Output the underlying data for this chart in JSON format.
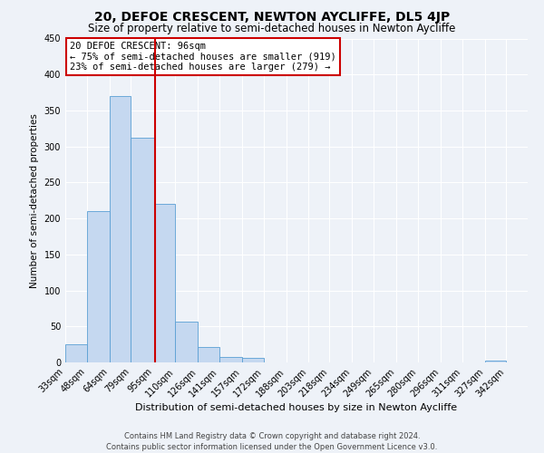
{
  "title": "20, DEFOE CRESCENT, NEWTON AYCLIFFE, DL5 4JP",
  "subtitle": "Size of property relative to semi-detached houses in Newton Aycliffe",
  "xlabel": "Distribution of semi-detached houses by size in Newton Aycliffe",
  "ylabel": "Number of semi-detached properties",
  "bin_labels": [
    "33sqm",
    "48sqm",
    "64sqm",
    "79sqm",
    "95sqm",
    "110sqm",
    "126sqm",
    "141sqm",
    "157sqm",
    "172sqm",
    "188sqm",
    "203sqm",
    "218sqm",
    "234sqm",
    "249sqm",
    "265sqm",
    "280sqm",
    "296sqm",
    "311sqm",
    "327sqm",
    "342sqm"
  ],
  "bar_values": [
    25,
    210,
    370,
    312,
    220,
    57,
    22,
    7,
    6,
    0,
    0,
    0,
    0,
    0,
    0,
    0,
    0,
    0,
    0,
    3,
    0
  ],
  "bin_edges": [
    33,
    48,
    64,
    79,
    95,
    110,
    126,
    141,
    157,
    172,
    188,
    203,
    218,
    234,
    249,
    265,
    280,
    296,
    311,
    327,
    342
  ],
  "bar_color": "#c5d8f0",
  "bar_edge_color": "#5a9fd4",
  "vline_x": 96,
  "vline_color": "#cc0000",
  "ylim": [
    0,
    450
  ],
  "yticks": [
    0,
    50,
    100,
    150,
    200,
    250,
    300,
    350,
    400,
    450
  ],
  "annotation_title": "20 DEFOE CRESCENT: 96sqm",
  "annotation_line1": "← 75% of semi-detached houses are smaller (919)",
  "annotation_line2": "23% of semi-detached houses are larger (279) →",
  "annotation_box_color": "#cc0000",
  "footer_line1": "Contains HM Land Registry data © Crown copyright and database right 2024.",
  "footer_line2": "Contains public sector information licensed under the Open Government Licence v3.0.",
  "background_color": "#eef2f8",
  "grid_color": "#ffffff",
  "title_fontsize": 10,
  "subtitle_fontsize": 8.5,
  "xlabel_fontsize": 8,
  "ylabel_fontsize": 7.5,
  "tick_fontsize": 7,
  "annotation_fontsize": 7.5,
  "footer_fontsize": 6
}
